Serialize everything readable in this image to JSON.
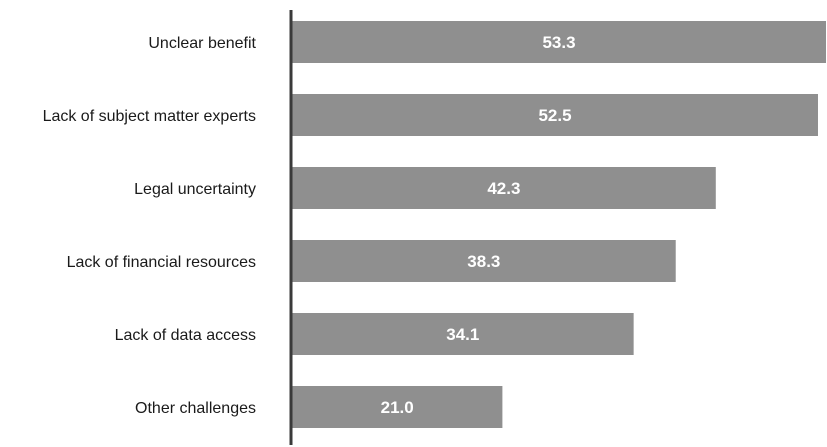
{
  "chart_data": {
    "type": "bar",
    "orientation": "horizontal",
    "categories": [
      "Unclear benefit",
      "Lack of subject matter experts",
      "Legal uncertainty",
      "Lack of financial resources",
      "Lack of data access",
      "Other challenges"
    ],
    "values": [
      53.3,
      52.5,
      42.3,
      38.3,
      34.1,
      21.0
    ],
    "value_labels": [
      "53.3",
      "52.5",
      "42.3",
      "38.3",
      "34.1",
      "21.0"
    ],
    "xlim": [
      0,
      53.3
    ],
    "grid": false,
    "legend": "none",
    "colors": {
      "bar": "#8f8f8f",
      "axis": "#3a3a3a",
      "label": "#1a1a1a",
      "value_label": "#ffffff"
    }
  }
}
